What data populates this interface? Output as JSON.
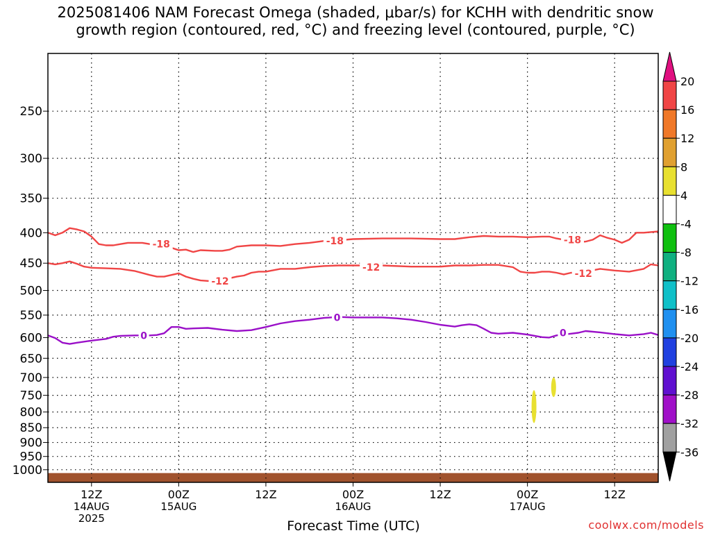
{
  "title_line1": "2025081406 NAM Forecast Omega (shaded, μbar/s) for KCHH with dendritic snow",
  "title_line2": "growth region (contoured, red, °C) and freezing level (contoured, purple, °C)",
  "credit": "coolwx.com/models",
  "colors": {
    "dgz": "#f04545",
    "freezing": "#9a10c8",
    "ground": "#a0522d",
    "omega_pos4": "#e8e030"
  },
  "chart_data": {
    "type": "contour",
    "xlabel": "Forecast Time (UTC)",
    "ylabel": "",
    "x_unit": "hours since 2025-08-14 00Z",
    "xlim": [
      6,
      90
    ],
    "y_scale": "log-pressure",
    "ylim": [
      1050,
      200
    ],
    "y_ticks": [
      250,
      300,
      350,
      400,
      450,
      500,
      550,
      600,
      650,
      700,
      750,
      800,
      850,
      900,
      950,
      1000
    ],
    "x_ticks": [
      {
        "hour": 12,
        "label": "12Z",
        "sub": [
          "14AUG",
          "2025"
        ]
      },
      {
        "hour": 24,
        "label": "00Z",
        "sub": [
          "15AUG"
        ]
      },
      {
        "hour": 36,
        "label": "12Z",
        "sub": []
      },
      {
        "hour": 48,
        "label": "00Z",
        "sub": [
          "16AUG"
        ]
      },
      {
        "hour": 60,
        "label": "12Z",
        "sub": []
      },
      {
        "hour": 72,
        "label": "00Z",
        "sub": [
          "17AUG"
        ]
      },
      {
        "hour": 84,
        "label": "12Z",
        "sub": []
      }
    ],
    "grid": true,
    "contours": [
      {
        "level": "-18",
        "color": "#f04545",
        "label_at": [
          [
            21.6,
            418
          ],
          [
            45.5,
            413
          ],
          [
            78.2,
            411
          ]
        ],
        "points": [
          [
            6,
            400
          ],
          [
            7,
            404
          ],
          [
            8,
            400
          ],
          [
            9,
            393
          ],
          [
            10,
            395
          ],
          [
            11,
            398
          ],
          [
            12,
            406
          ],
          [
            13,
            418
          ],
          [
            14,
            420
          ],
          [
            15,
            420
          ],
          [
            16,
            418
          ],
          [
            17,
            416
          ],
          [
            19,
            416
          ],
          [
            20,
            418
          ],
          [
            21,
            420
          ],
          [
            22,
            421
          ],
          [
            23,
            424
          ],
          [
            24,
            428
          ],
          [
            25,
            427
          ],
          [
            26,
            431
          ],
          [
            27,
            428
          ],
          [
            29,
            429
          ],
          [
            30,
            429
          ],
          [
            31,
            427
          ],
          [
            32,
            422
          ],
          [
            34,
            420
          ],
          [
            36,
            420
          ],
          [
            38,
            421
          ],
          [
            40,
            418
          ],
          [
            42,
            416
          ],
          [
            44,
            413
          ],
          [
            46,
            412
          ],
          [
            48,
            410
          ],
          [
            52,
            409
          ],
          [
            56,
            409
          ],
          [
            60,
            410
          ],
          [
            62,
            410
          ],
          [
            64,
            407
          ],
          [
            66,
            405
          ],
          [
            68,
            406
          ],
          [
            70,
            406
          ],
          [
            72,
            407
          ],
          [
            74,
            406
          ],
          [
            75,
            406
          ],
          [
            76,
            409
          ],
          [
            77,
            411
          ],
          [
            78,
            412
          ],
          [
            79,
            415
          ],
          [
            80,
            414
          ],
          [
            81,
            411
          ],
          [
            82,
            404
          ],
          [
            83,
            408
          ],
          [
            84,
            411
          ],
          [
            85,
            416
          ],
          [
            86,
            411
          ],
          [
            87,
            400
          ],
          [
            88,
            400
          ],
          [
            90,
            398
          ]
        ]
      },
      {
        "level": "-12",
        "color": "#f04545",
        "label_at": [
          [
            29.7,
            482
          ],
          [
            50.5,
            457
          ],
          [
            79.7,
            468
          ]
        ],
        "points": [
          [
            6,
            450
          ],
          [
            7,
            452
          ],
          [
            8,
            450
          ],
          [
            9,
            447
          ],
          [
            10,
            451
          ],
          [
            11,
            456
          ],
          [
            12,
            458
          ],
          [
            14,
            459
          ],
          [
            16,
            460
          ],
          [
            18,
            464
          ],
          [
            20,
            471
          ],
          [
            21,
            474
          ],
          [
            22,
            474
          ],
          [
            23,
            471
          ],
          [
            24,
            468
          ],
          [
            25,
            474
          ],
          [
            26,
            478
          ],
          [
            27,
            481
          ],
          [
            28,
            482
          ],
          [
            29,
            482
          ],
          [
            30,
            482
          ],
          [
            31,
            477
          ],
          [
            32,
            474
          ],
          [
            33,
            472
          ],
          [
            34,
            467
          ],
          [
            35,
            465
          ],
          [
            36,
            465
          ],
          [
            38,
            460
          ],
          [
            40,
            460
          ],
          [
            42,
            457
          ],
          [
            44,
            455
          ],
          [
            46,
            454
          ],
          [
            48,
            454
          ],
          [
            52,
            454
          ],
          [
            56,
            456
          ],
          [
            58,
            456
          ],
          [
            60,
            456
          ],
          [
            62,
            454
          ],
          [
            64,
            454
          ],
          [
            66,
            453
          ],
          [
            68,
            453
          ],
          [
            70,
            457
          ],
          [
            71,
            465
          ],
          [
            72,
            467
          ],
          [
            73,
            467
          ],
          [
            74,
            465
          ],
          [
            75,
            465
          ],
          [
            76,
            467
          ],
          [
            77,
            470
          ],
          [
            78,
            467
          ],
          [
            79,
            468
          ],
          [
            80,
            465
          ],
          [
            82,
            460
          ],
          [
            84,
            463
          ],
          [
            86,
            465
          ],
          [
            88,
            460
          ],
          [
            89,
            452
          ],
          [
            90,
            454
          ]
        ]
      },
      {
        "level": "0",
        "color": "#9a10c8",
        "label_at": [
          [
            19.2,
            595
          ],
          [
            45.8,
            555
          ],
          [
            76.9,
            589
          ]
        ],
        "points": [
          [
            6,
            595
          ],
          [
            7,
            601
          ],
          [
            8,
            612
          ],
          [
            9,
            615
          ],
          [
            10,
            612
          ],
          [
            12,
            607
          ],
          [
            14,
            603
          ],
          [
            15,
            598
          ],
          [
            16,
            596
          ],
          [
            18,
            595
          ],
          [
            19,
            595
          ],
          [
            20,
            595
          ],
          [
            21,
            594
          ],
          [
            22,
            590
          ],
          [
            23,
            576
          ],
          [
            24,
            576
          ],
          [
            25,
            580
          ],
          [
            26,
            579
          ],
          [
            28,
            578
          ],
          [
            30,
            582
          ],
          [
            32,
            585
          ],
          [
            34,
            583
          ],
          [
            36,
            576
          ],
          [
            38,
            568
          ],
          [
            40,
            563
          ],
          [
            42,
            560
          ],
          [
            44,
            556
          ],
          [
            46,
            554
          ],
          [
            48,
            555
          ],
          [
            52,
            555
          ],
          [
            54,
            557
          ],
          [
            56,
            560
          ],
          [
            58,
            565
          ],
          [
            60,
            571
          ],
          [
            62,
            575
          ],
          [
            63,
            572
          ],
          [
            64,
            570
          ],
          [
            65,
            572
          ],
          [
            66,
            580
          ],
          [
            67,
            589
          ],
          [
            68,
            591
          ],
          [
            70,
            589
          ],
          [
            72,
            593
          ],
          [
            74,
            599
          ],
          [
            75,
            600
          ],
          [
            76,
            595
          ],
          [
            78,
            591
          ],
          [
            79,
            589
          ],
          [
            80,
            585
          ],
          [
            82,
            588
          ],
          [
            84,
            592
          ],
          [
            86,
            595
          ],
          [
            88,
            592
          ],
          [
            89,
            589
          ],
          [
            90,
            594
          ]
        ]
      }
    ],
    "shaded": [
      {
        "range": "4-8",
        "color": "#e8e030",
        "regions": [
          {
            "x": 72.9,
            "y_top": 735,
            "y_bottom": 835
          },
          {
            "x": 75.6,
            "y_top": 700,
            "y_bottom": 755
          }
        ]
      }
    ],
    "colorbar": {
      "bins": [
        {
          "lo": 16,
          "hi": 20,
          "color": "#f04545"
        },
        {
          "lo": 12,
          "hi": 16,
          "color": "#f07828"
        },
        {
          "lo": 8,
          "hi": 12,
          "color": "#e0a030"
        },
        {
          "lo": 4,
          "hi": 8,
          "color": "#e8e030"
        },
        {
          "lo": -4,
          "hi": 4,
          "color": "#ffffff"
        },
        {
          "lo": -8,
          "hi": -4,
          "color": "#10c010"
        },
        {
          "lo": -12,
          "hi": -8,
          "color": "#10b080"
        },
        {
          "lo": -16,
          "hi": -12,
          "color": "#10c0c8"
        },
        {
          "lo": -20,
          "hi": -16,
          "color": "#2090f0"
        },
        {
          "lo": -24,
          "hi": -20,
          "color": "#2040e0"
        },
        {
          "lo": -28,
          "hi": -24,
          "color": "#6010d0"
        },
        {
          "lo": -32,
          "hi": -28,
          "color": "#a010c8"
        },
        {
          "lo": -36,
          "hi": -32,
          "color": "#a0a0a0"
        }
      ],
      "labels": [
        "20",
        "16",
        "12",
        "8",
        "4",
        "-4",
        "-8",
        "-12",
        "-16",
        "-20",
        "-24",
        "-28",
        "-32",
        "-36"
      ],
      "top_arrow_color": "#e01080",
      "bottom_arrow_color": "#000000"
    }
  }
}
